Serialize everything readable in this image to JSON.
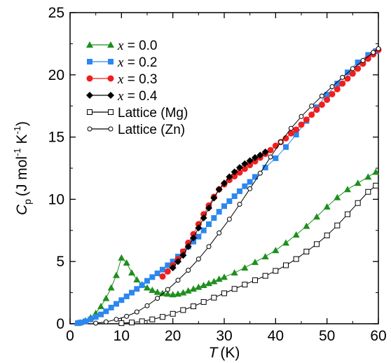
{
  "chart_data": {
    "type": "scatter",
    "title": "",
    "xlabel": {
      "symbol": "T",
      "unit": "(K)"
    },
    "ylabel": {
      "symbol": "C",
      "subscript": "p",
      "unit": "(J mol",
      "exp1": "-1",
      "mid": " K",
      "exp2": "-1",
      "close": ")"
    },
    "xlim": [
      0,
      60
    ],
    "ylim": [
      0,
      25
    ],
    "xticks": [
      0,
      10,
      20,
      30,
      40,
      50,
      60
    ],
    "yticks": [
      0,
      5,
      10,
      15,
      20,
      25
    ],
    "legend_position": "top-left",
    "series": [
      {
        "name": "x = 0.0",
        "var": "x",
        "eq": " = 0.0",
        "color": "#1e8f1e",
        "marker": "triangle",
        "x": [
          1.5,
          2,
          3,
          4,
          5,
          6,
          7,
          8,
          9,
          10,
          11,
          12,
          13,
          14,
          15,
          16,
          17,
          18,
          19,
          20,
          21,
          22,
          23,
          24,
          25,
          26,
          27,
          28,
          29,
          30,
          32,
          34,
          36,
          38,
          40,
          42,
          44,
          46,
          48,
          50,
          52,
          54,
          56,
          58,
          59.5
        ],
        "y": [
          0.05,
          0.1,
          0.25,
          0.5,
          0.85,
          1.4,
          2.05,
          2.9,
          3.9,
          5.3,
          4.9,
          4.1,
          3.55,
          3.15,
          2.9,
          2.7,
          2.55,
          2.45,
          2.4,
          2.35,
          2.4,
          2.5,
          2.65,
          2.8,
          2.95,
          3.1,
          3.25,
          3.4,
          3.6,
          3.75,
          4.1,
          4.5,
          4.95,
          5.4,
          5.9,
          6.5,
          7.15,
          7.85,
          8.6,
          9.4,
          10.15,
          10.8,
          11.3,
          11.8,
          12.2
        ]
      },
      {
        "name": "x = 0.2",
        "var": "x",
        "eq": " = 0.2",
        "color": "#2b87f0",
        "marker": "square",
        "x": [
          1.5,
          2,
          3,
          4,
          5,
          6,
          7,
          8,
          9,
          10,
          11,
          12,
          13,
          14,
          15,
          16,
          17,
          18,
          19,
          20,
          21,
          22,
          23,
          24,
          25,
          26,
          27,
          28,
          29,
          30,
          31,
          32,
          33,
          34,
          35,
          36,
          38,
          40,
          42,
          44,
          46,
          48,
          50,
          52,
          54,
          56,
          58,
          59.5
        ],
        "y": [
          0.05,
          0.1,
          0.2,
          0.35,
          0.55,
          0.75,
          1,
          1.3,
          1.6,
          1.9,
          2.2,
          2.5,
          2.8,
          3.1,
          3.45,
          3.75,
          4.05,
          4.35,
          4.7,
          5.0,
          5.4,
          5.8,
          6.2,
          6.6,
          7.0,
          7.5,
          8.0,
          8.5,
          9.0,
          9.45,
          9.85,
          10.25,
          10.65,
          11.05,
          11.4,
          11.8,
          12.55,
          13.3,
          14.2,
          15.2,
          16.3,
          17.4,
          18.4,
          19.3,
          20.2,
          21.0,
          21.6,
          21.9
        ]
      },
      {
        "name": "x = 0.3",
        "var": "x",
        "eq": " = 0.3",
        "color": "#f01e1e",
        "marker": "circle",
        "x": [
          18,
          19,
          20,
          21,
          22,
          23,
          24,
          25,
          26,
          27,
          28,
          29,
          30,
          31,
          32,
          33,
          34,
          35,
          36,
          37,
          38,
          39,
          40,
          41,
          42,
          43,
          44,
          45,
          46,
          47,
          48,
          49,
          50,
          51,
          52,
          53,
          54,
          55,
          56,
          57,
          58,
          59,
          60
        ],
        "y": [
          3.8,
          4.2,
          4.7,
          5.2,
          5.8,
          6.5,
          7.2,
          8.0,
          8.8,
          9.5,
          10.2,
          10.8,
          11.2,
          11.55,
          11.85,
          12.15,
          12.45,
          12.75,
          13.05,
          13.35,
          13.65,
          13.95,
          14.3,
          14.6,
          14.9,
          15.3,
          15.6,
          16.0,
          16.4,
          16.8,
          17.2,
          17.6,
          18.0,
          18.45,
          18.85,
          19.3,
          19.7,
          20.1,
          20.5,
          20.9,
          21.3,
          21.65,
          22.0
        ]
      },
      {
        "name": "x = 0.4",
        "var": "x",
        "eq": " = 0.4",
        "color": "#000000",
        "marker": "diamond",
        "x": [
          20,
          21,
          22,
          23,
          24,
          25,
          26,
          27,
          28,
          29,
          30,
          31,
          32,
          33,
          34,
          35,
          36,
          37,
          38
        ],
        "y": [
          4.5,
          5.0,
          5.5,
          6.2,
          6.9,
          7.7,
          8.5,
          9.3,
          10.1,
          10.8,
          11.3,
          11.8,
          12.2,
          12.55,
          12.85,
          13.1,
          13.35,
          13.55,
          13.8
        ]
      },
      {
        "name": "Lattice (Mg)",
        "color": "#000000",
        "marker": "open-square",
        "x": [
          10,
          12,
          14,
          16,
          18,
          20,
          22,
          24,
          26,
          28,
          30,
          32,
          34,
          36,
          38,
          40,
          42,
          44,
          46,
          48,
          50,
          52,
          54,
          56,
          58,
          59.5
        ],
        "y": [
          0.05,
          0.1,
          0.2,
          0.35,
          0.55,
          0.8,
          1.1,
          1.4,
          1.75,
          2.1,
          2.45,
          2.8,
          3.15,
          3.5,
          3.85,
          4.25,
          4.7,
          5.2,
          5.8,
          6.4,
          7.1,
          7.9,
          8.8,
          9.7,
          10.6,
          11.1
        ]
      },
      {
        "name": "Lattice (Zn)",
        "color": "#000000",
        "marker": "open-circle",
        "x": [
          5,
          7,
          9,
          11,
          13,
          15,
          17,
          19,
          21,
          23,
          25,
          27,
          29,
          31,
          33,
          35,
          37,
          39,
          41,
          43,
          45,
          47,
          49,
          51,
          53,
          55,
          57,
          59,
          60
        ],
        "y": [
          0.05,
          0.15,
          0.35,
          0.6,
          0.95,
          1.45,
          2.05,
          2.75,
          3.5,
          4.3,
          5.2,
          6.2,
          7.3,
          8.4,
          9.6,
          10.85,
          12.1,
          13.4,
          14.6,
          15.7,
          16.65,
          17.5,
          18.3,
          19.05,
          19.8,
          20.5,
          21.15,
          21.8,
          22.1
        ]
      }
    ]
  }
}
